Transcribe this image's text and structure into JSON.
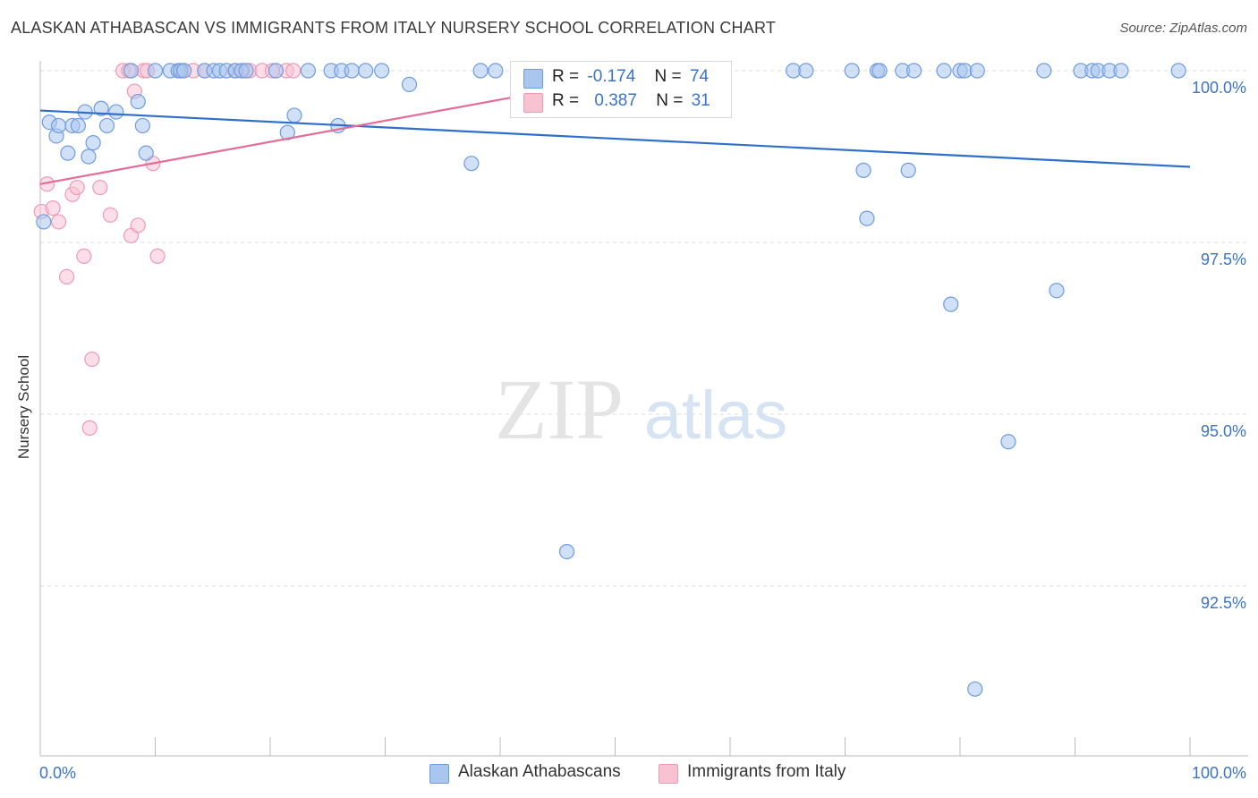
{
  "header": {
    "title": "ALASKAN ATHABASCAN VS IMMIGRANTS FROM ITALY NURSERY SCHOOL CORRELATION CHART",
    "source": "Source: ZipAtlas.com"
  },
  "watermark": {
    "zip": "ZIP",
    "atlas": "atlas"
  },
  "legend": {
    "rows": [
      {
        "r_label": "R =",
        "r_value": "-0.174",
        "n_label": "N =",
        "n_value": "74"
      },
      {
        "r_label": "R =",
        "r_value": "0.387",
        "n_label": "N =",
        "n_value": "31"
      }
    ]
  },
  "bottom_legend": {
    "series1": "Alaskan Athabascans",
    "series2": "Immigrants from Italy"
  },
  "colors": {
    "blue_fill": "#a9c6ee",
    "blue_stroke": "#6f9be0",
    "blue_line": "#2e6fcc",
    "pink_fill": "#f7c3d3",
    "pink_stroke": "#ee9ab5",
    "pink_line": "#e36d95",
    "tick_label": "#3b73c7",
    "grid": "#dddddd"
  },
  "chart_data": {
    "type": "scatter",
    "title": "ALASKAN ATHABASCAN VS IMMIGRANTS FROM ITALY NURSERY SCHOOL CORRELATION CHART",
    "xlabel": "",
    "ylabel": "Nursery School",
    "xlim": [
      0,
      100
    ],
    "ylim": [
      90.0,
      100.3
    ],
    "x_tick_labels": [
      "0.0%",
      "100.0%"
    ],
    "y_ticks": [
      100.0,
      97.5,
      95.0,
      92.5
    ],
    "y_tick_labels": [
      "100.0%",
      "97.5%",
      "95.0%",
      "92.5%"
    ],
    "grid": true,
    "legend_position": "top-center",
    "series": [
      {
        "name": "Alaskan Athabascans",
        "color": "#a9c6ee",
        "r": -0.174,
        "n": 74,
        "trend": {
          "x": [
            0,
            100
          ],
          "y": [
            99.42,
            98.6
          ]
        },
        "points": [
          [
            0.3,
            97.8
          ],
          [
            0.8,
            99.25
          ],
          [
            1.4,
            99.05
          ],
          [
            1.6,
            99.2
          ],
          [
            2.4,
            98.8
          ],
          [
            2.8,
            99.2
          ],
          [
            3.3,
            99.2
          ],
          [
            3.9,
            99.4
          ],
          [
            4.2,
            98.75
          ],
          [
            4.6,
            98.95
          ],
          [
            5.3,
            99.45
          ],
          [
            5.8,
            99.2
          ],
          [
            6.6,
            99.4
          ],
          [
            7.9,
            100.0
          ],
          [
            8.5,
            99.55
          ],
          [
            8.9,
            99.2
          ],
          [
            9.2,
            98.8
          ],
          [
            10.0,
            100.0
          ],
          [
            11.3,
            100.0
          ],
          [
            12.0,
            100.0
          ],
          [
            12.2,
            100.0
          ],
          [
            12.5,
            100.0
          ],
          [
            14.3,
            100.0
          ],
          [
            15.1,
            100.0
          ],
          [
            15.6,
            100.0
          ],
          [
            16.2,
            100.0
          ],
          [
            17.0,
            100.0
          ],
          [
            17.5,
            100.0
          ],
          [
            17.9,
            100.0
          ],
          [
            20.5,
            100.0
          ],
          [
            21.5,
            99.1
          ],
          [
            22.1,
            99.35
          ],
          [
            23.3,
            100.0
          ],
          [
            25.3,
            100.0
          ],
          [
            25.9,
            99.2
          ],
          [
            26.2,
            100.0
          ],
          [
            27.1,
            100.0
          ],
          [
            28.3,
            100.0
          ],
          [
            29.7,
            100.0
          ],
          [
            32.1,
            99.8
          ],
          [
            37.5,
            98.65
          ],
          [
            38.3,
            100.0
          ],
          [
            39.6,
            100.0
          ],
          [
            41.8,
            100.0
          ],
          [
            45.8,
            93.0
          ],
          [
            47.9,
            100.0
          ],
          [
            53.0,
            100.0
          ],
          [
            53.6,
            100.0
          ],
          [
            58.0,
            100.0
          ],
          [
            65.5,
            100.0
          ],
          [
            66.6,
            100.0
          ],
          [
            70.6,
            100.0
          ],
          [
            71.6,
            98.55
          ],
          [
            71.9,
            97.85
          ],
          [
            72.8,
            100.0
          ],
          [
            73.0,
            100.0
          ],
          [
            75.0,
            100.0
          ],
          [
            75.5,
            98.55
          ],
          [
            76.0,
            100.0
          ],
          [
            78.6,
            100.0
          ],
          [
            79.2,
            96.6
          ],
          [
            80.0,
            100.0
          ],
          [
            80.4,
            100.0
          ],
          [
            81.5,
            100.0
          ],
          [
            81.3,
            91.0
          ],
          [
            84.2,
            94.6
          ],
          [
            87.3,
            100.0
          ],
          [
            88.4,
            96.8
          ],
          [
            90.5,
            100.0
          ],
          [
            91.5,
            100.0
          ],
          [
            92.0,
            100.0
          ],
          [
            93.0,
            100.0
          ],
          [
            94.0,
            100.0
          ],
          [
            99.0,
            100.0
          ]
        ]
      },
      {
        "name": "Immigrants from Italy",
        "color": "#f7c3d3",
        "r": 0.387,
        "n": 31,
        "trend": {
          "x": [
            0,
            53.7
          ],
          "y": [
            98.35,
            100.0
          ]
        },
        "points": [
          [
            0.1,
            97.95
          ],
          [
            0.6,
            98.35
          ],
          [
            1.1,
            98.0
          ],
          [
            1.6,
            97.8
          ],
          [
            2.3,
            97.0
          ],
          [
            2.8,
            98.2
          ],
          [
            3.2,
            98.3
          ],
          [
            3.8,
            97.3
          ],
          [
            4.3,
            94.8
          ],
          [
            4.5,
            95.8
          ],
          [
            5.2,
            98.3
          ],
          [
            6.1,
            97.9
          ],
          [
            7.2,
            100.0
          ],
          [
            7.7,
            100.0
          ],
          [
            7.9,
            97.6
          ],
          [
            8.2,
            99.7
          ],
          [
            8.5,
            97.75
          ],
          [
            9.0,
            100.0
          ],
          [
            9.3,
            100.0
          ],
          [
            9.8,
            98.65
          ],
          [
            10.2,
            97.3
          ],
          [
            12.3,
            100.0
          ],
          [
            13.3,
            100.0
          ],
          [
            14.3,
            100.0
          ],
          [
            16.9,
            100.0
          ],
          [
            17.6,
            100.0
          ],
          [
            18.2,
            100.0
          ],
          [
            19.3,
            100.0
          ],
          [
            20.2,
            100.0
          ],
          [
            21.4,
            100.0
          ],
          [
            22.0,
            100.0
          ]
        ]
      }
    ]
  }
}
